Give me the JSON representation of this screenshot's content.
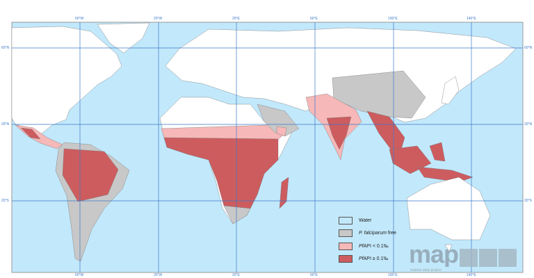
{
  "graticule": {
    "lon_labels": [
      "60°W",
      "20°W",
      "20°E",
      "60°E",
      "100°E",
      "140°E"
    ],
    "lat_labels": [
      "60°N",
      "20°N",
      "20°S"
    ]
  },
  "legend": {
    "items": [
      {
        "label_plain": "Water",
        "color": "#c2e8fb"
      },
      {
        "label_italic": "P. falciparum",
        "label_plain": " free",
        "color": "#c8c8c8"
      },
      {
        "label_italic": "Pf",
        "label_plain": "API < 0.1‰",
        "color": "#f6b8b8"
      },
      {
        "label_italic": "Pf",
        "label_plain": "API ≥ 0.1‰",
        "color": "#cd5c5f"
      }
    ]
  },
  "logo": {
    "text": "map",
    "subtitle": "malaria atlas project"
  },
  "colors": {
    "water": "#c2e8fb",
    "land": "#ffffff",
    "free": "#c8c8c8",
    "low": "#f6b8b8",
    "high": "#cd5c5f",
    "grid": "#3a78c8"
  }
}
